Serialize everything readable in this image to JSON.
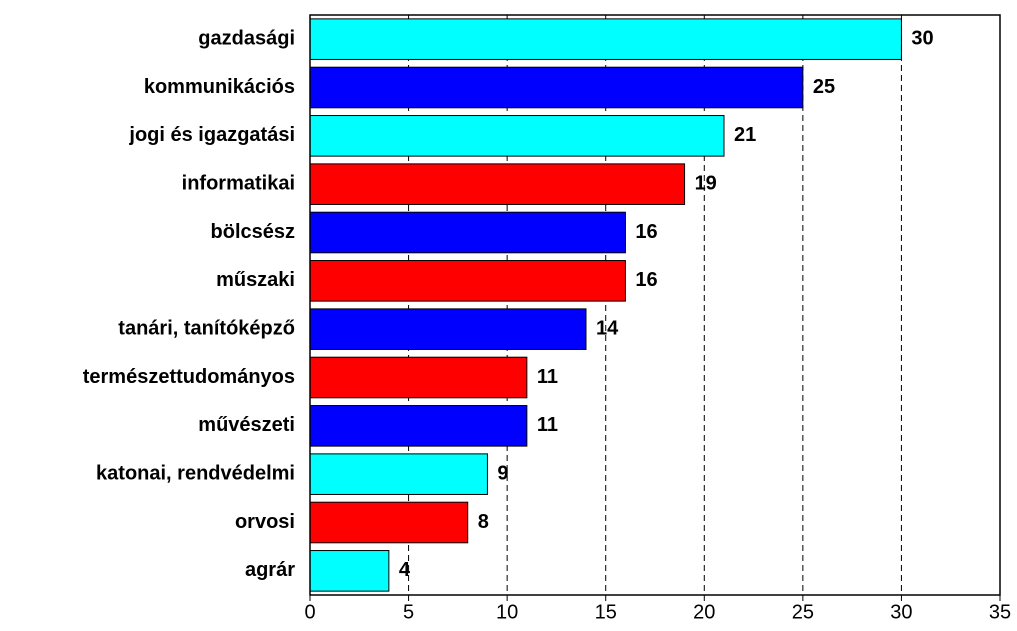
{
  "chart_data": {
    "type": "barh",
    "categories": [
      "gazdasági",
      "kommunikációs",
      "jogi és igazgatási",
      "informatikai",
      "bölcsész",
      "műszaki",
      "tanári, tanítóképző",
      "természettudományos",
      "művészeti",
      "katonai, rendvédelmi",
      "orvosi",
      "agrár"
    ],
    "values": [
      30,
      25,
      21,
      19,
      16,
      16,
      14,
      11,
      11,
      9,
      8,
      4
    ],
    "colors": [
      "#00ffff",
      "#0000ff",
      "#00ffff",
      "#ff0000",
      "#0000ff",
      "#ff0000",
      "#0000ff",
      "#ff0000",
      "#0000ff",
      "#00ffff",
      "#ff0000",
      "#00ffff"
    ],
    "xlim": [
      0,
      35
    ],
    "xticks": [
      0,
      5,
      10,
      15,
      20,
      25,
      30,
      35
    ],
    "grid": true
  }
}
